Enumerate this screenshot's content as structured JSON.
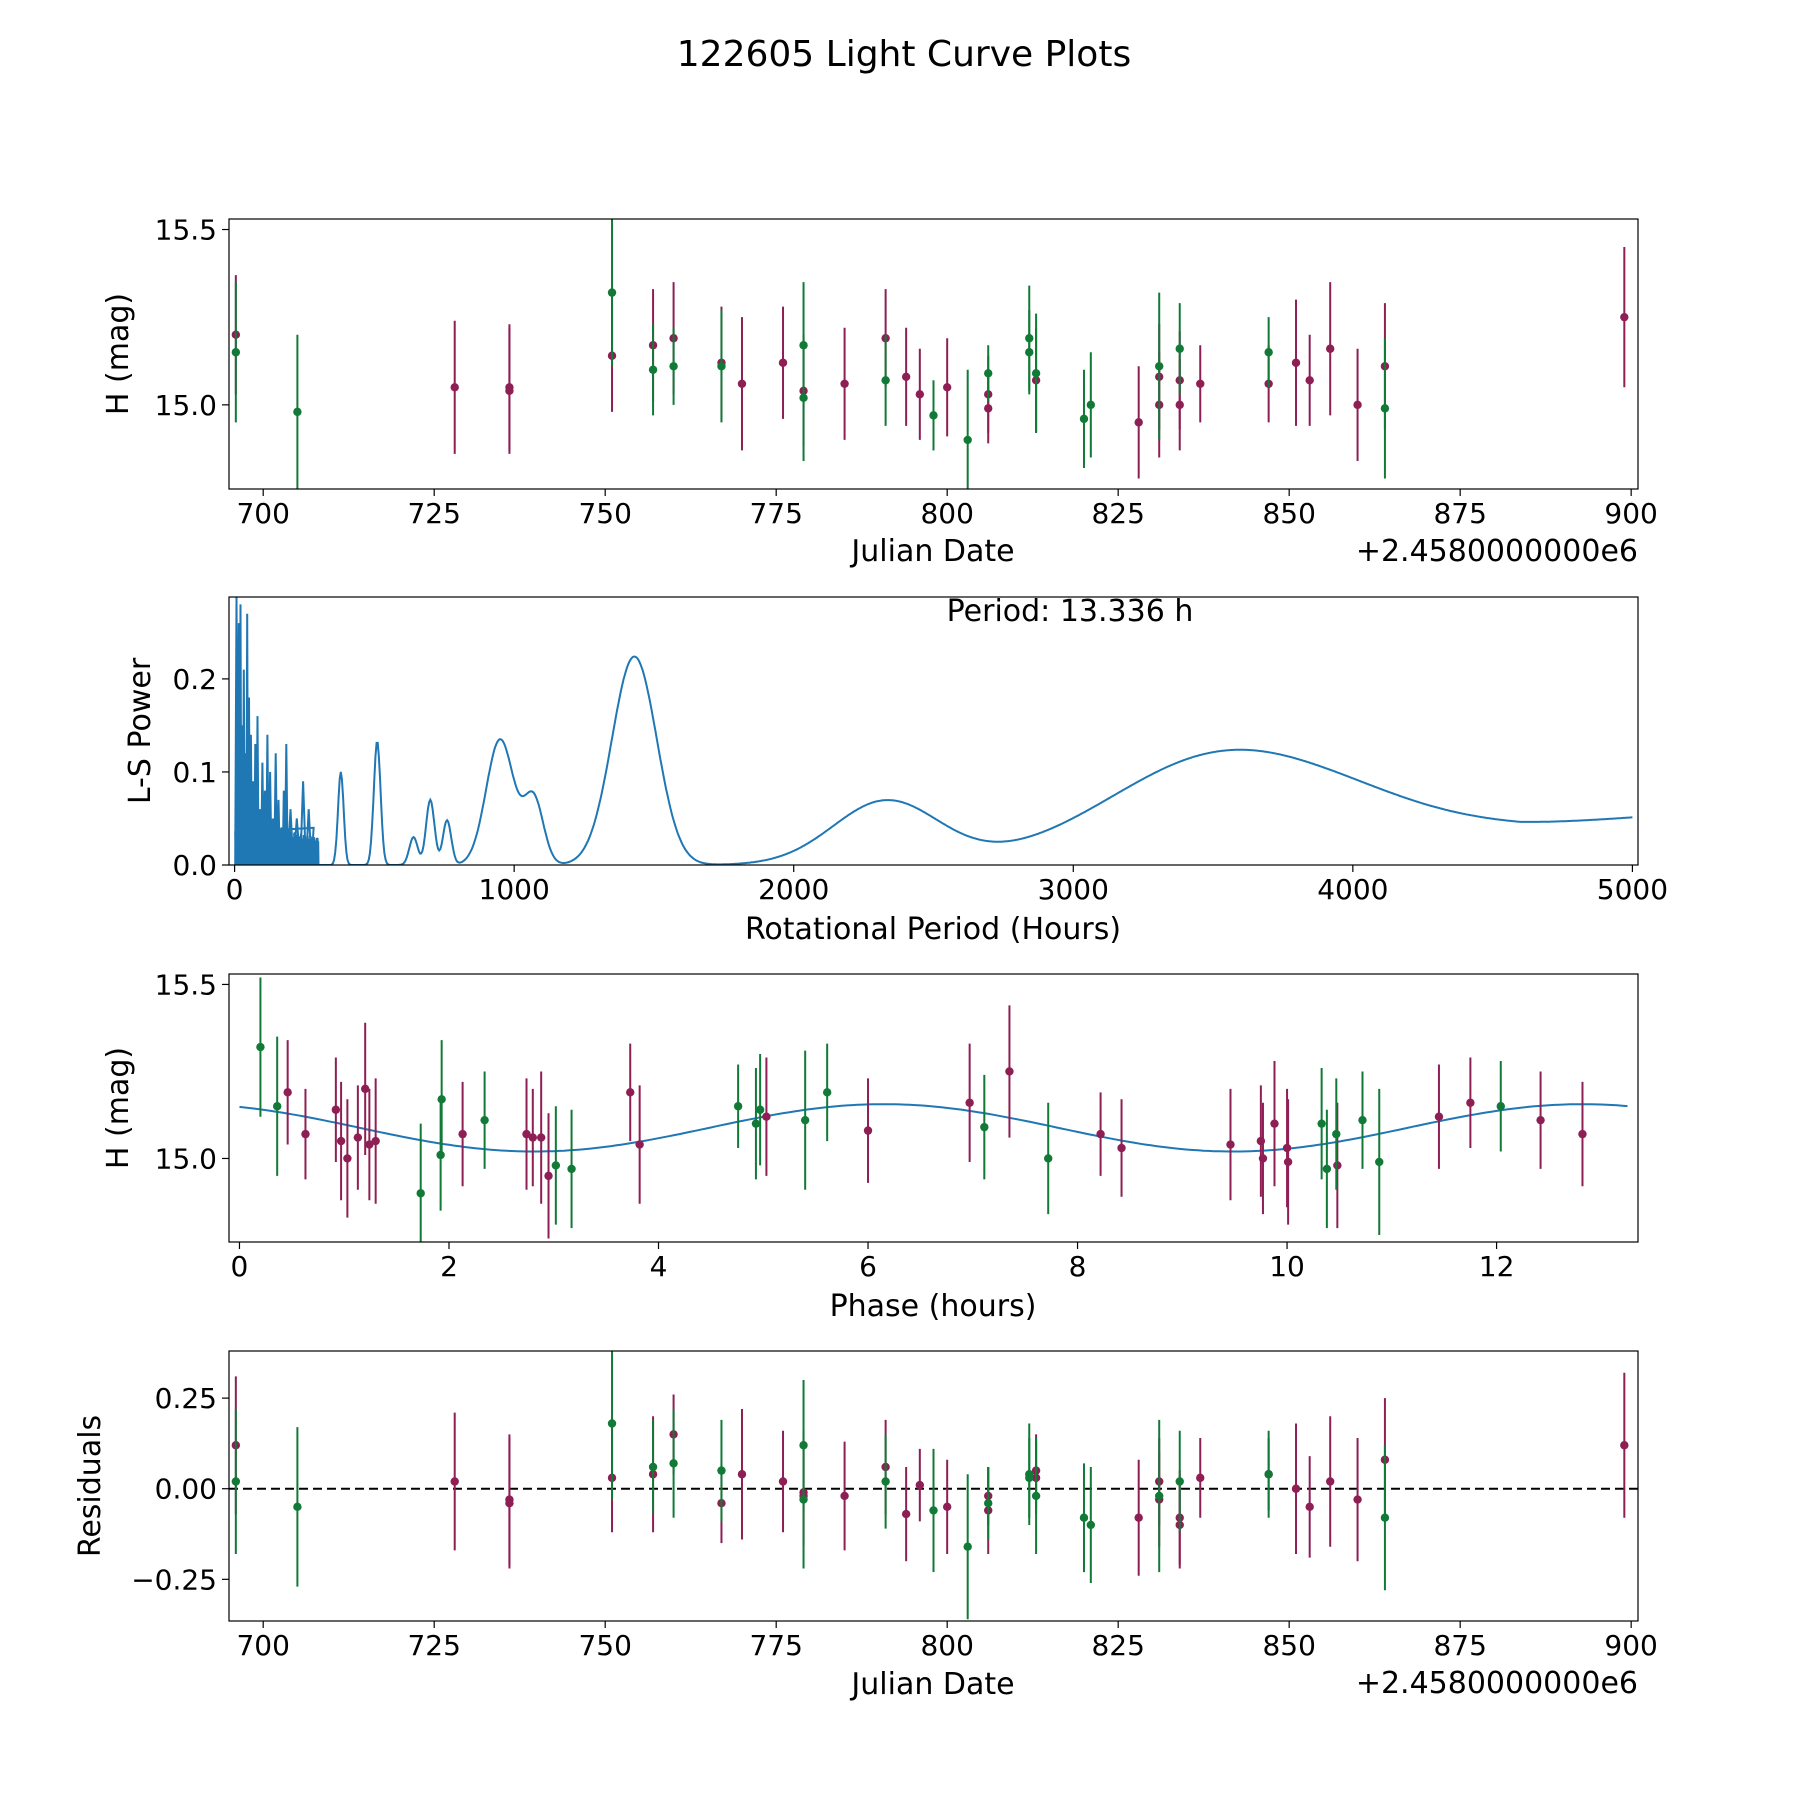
{
  "figure_title": "122605 Light Curve Plots",
  "colors": {
    "magenta": "#8e1f55",
    "green": "#117a37",
    "line": "#1f77b4"
  },
  "chart_data": [
    {
      "id": "lc",
      "type": "scatter",
      "xlabel": "Julian Date",
      "ylabel": "H (mag)",
      "offset_label": "+2.4580000000e6",
      "xlim": [
        695,
        901
      ],
      "ylim": [
        14.76,
        15.53
      ],
      "xticks": [
        700,
        725,
        750,
        775,
        800,
        825,
        850,
        875,
        900
      ],
      "yticks": [
        15.0,
        15.5
      ],
      "ytick_labels": [
        "15.0",
        "15.5"
      ],
      "series": [
        {
          "name": "magenta",
          "color_key": "magenta",
          "points": [
            [
              696.0,
              15.2,
              0.17
            ],
            [
              728.0,
              15.05,
              0.19
            ],
            [
              736.0,
              15.04,
              0.18
            ],
            [
              736.0,
              15.05,
              0.18
            ],
            [
              751.0,
              15.14,
              0.16
            ],
            [
              757.0,
              15.17,
              0.16
            ],
            [
              760.0,
              15.19,
              0.16
            ],
            [
              767.0,
              15.12,
              0.16
            ],
            [
              770.0,
              15.06,
              0.19
            ],
            [
              776.0,
              15.12,
              0.16
            ],
            [
              779.0,
              15.04,
              0.16
            ],
            [
              785.0,
              15.06,
              0.16
            ],
            [
              791.0,
              15.19,
              0.14
            ],
            [
              794.0,
              15.08,
              0.14
            ],
            [
              796.0,
              15.03,
              0.13
            ],
            [
              800.0,
              15.05,
              0.14
            ],
            [
              806.0,
              15.03,
              0.11
            ],
            [
              806.0,
              14.99,
              0.1
            ],
            [
              813.0,
              15.07,
              0.15
            ],
            [
              828.0,
              14.95,
              0.16
            ],
            [
              831.0,
              15.08,
              0.15
            ],
            [
              831.0,
              15.0,
              0.15
            ],
            [
              834.0,
              15.07,
              0.14
            ],
            [
              834.0,
              15.0,
              0.13
            ],
            [
              837.0,
              15.06,
              0.11
            ],
            [
              847.0,
              15.06,
              0.11
            ],
            [
              851.0,
              15.12,
              0.18
            ],
            [
              853.0,
              15.07,
              0.13
            ],
            [
              856.0,
              15.16,
              0.19
            ],
            [
              860.0,
              15.0,
              0.16
            ],
            [
              864.0,
              15.11,
              0.18
            ],
            [
              899.0,
              15.25,
              0.2
            ]
          ]
        },
        {
          "name": "green",
          "color_key": "green",
          "points": [
            [
              696.0,
              15.15,
              0.2
            ],
            [
              705.0,
              14.98,
              0.22
            ],
            [
              751.0,
              15.32,
              0.21
            ],
            [
              757.0,
              15.1,
              0.13
            ],
            [
              760.0,
              15.11,
              0.11
            ],
            [
              767.0,
              15.11,
              0.16
            ],
            [
              779.0,
              15.17,
              0.18
            ],
            [
              779.0,
              15.02,
              0.18
            ],
            [
              791.0,
              15.07,
              0.13
            ],
            [
              798.0,
              14.97,
              0.1
            ],
            [
              803.0,
              14.9,
              0.2
            ],
            [
              806.0,
              15.09,
              0.08
            ],
            [
              812.0,
              15.19,
              0.15
            ],
            [
              812.0,
              15.15,
              0.12
            ],
            [
              813.0,
              15.09,
              0.17
            ],
            [
              820.0,
              14.96,
              0.14
            ],
            [
              821.0,
              15.0,
              0.15
            ],
            [
              831.0,
              15.11,
              0.21
            ],
            [
              834.0,
              15.16,
              0.13
            ],
            [
              847.0,
              15.15,
              0.1
            ],
            [
              864.0,
              14.99,
              0.2
            ]
          ]
        }
      ]
    },
    {
      "id": "ls",
      "type": "line",
      "xlabel": "Rotational Period (Hours)",
      "ylabel": "L-S Power",
      "annotation": "Period: 13.336 h",
      "xlim": [
        -20,
        5020
      ],
      "ylim": [
        0.0,
        0.288
      ],
      "xticks": [
        0,
        1000,
        2000,
        3000,
        4000,
        5000
      ],
      "yticks": [
        0.0,
        0.1,
        0.2
      ],
      "ytick_labels": [
        "0.0",
        "0.1",
        "0.2"
      ],
      "smooth_peaks": [
        [
          380,
          0.1,
          10
        ],
        [
          510,
          0.133,
          12
        ],
        [
          640,
          0.03,
          15
        ],
        [
          700,
          0.07,
          15
        ],
        [
          760,
          0.048,
          15
        ],
        [
          950,
          0.135,
          50
        ],
        [
          1070,
          0.07,
          35
        ],
        [
          1430,
          0.224,
          80
        ],
        [
          2330,
          0.068,
          190
        ],
        [
          3550,
          0.118,
          420
        ]
      ],
      "spikes": [
        [
          12,
          0.288
        ],
        [
          18,
          0.26
        ],
        [
          24,
          0.28
        ],
        [
          30,
          0.15
        ],
        [
          36,
          0.21
        ],
        [
          42,
          0.12
        ],
        [
          48,
          0.27
        ],
        [
          55,
          0.18
        ],
        [
          62,
          0.14
        ],
        [
          70,
          0.09
        ],
        [
          78,
          0.13
        ],
        [
          86,
          0.16
        ],
        [
          95,
          0.06
        ],
        [
          104,
          0.11
        ],
        [
          113,
          0.08
        ],
        [
          122,
          0.14
        ],
        [
          132,
          0.1
        ],
        [
          142,
          0.05
        ],
        [
          152,
          0.12
        ],
        [
          162,
          0.07
        ],
        [
          172,
          0.04
        ],
        [
          180,
          0.08
        ],
        [
          190,
          0.13
        ],
        [
          210,
          0.06
        ],
        [
          235,
          0.05
        ],
        [
          255,
          0.09
        ],
        [
          275,
          0.06
        ],
        [
          290,
          0.04
        ]
      ]
    },
    {
      "id": "phase",
      "type": "scatter",
      "xlabel": "Phase (hours)",
      "ylabel": "H (mag)",
      "xlim": [
        -0.1,
        13.35
      ],
      "ylim": [
        14.76,
        15.53
      ],
      "xticks": [
        0,
        2,
        4,
        6,
        8,
        10,
        12
      ],
      "yticks": [
        15.0,
        15.5
      ],
      "ytick_labels": [
        "15.0",
        "15.5"
      ],
      "model": {
        "mean": 15.088,
        "amplitude": 0.068,
        "period_hours": 6.668,
        "peak_hours": 6.15,
        "x_range": [
          0.0,
          13.25
        ]
      },
      "series": [
        {
          "name": "magenta",
          "color_key": "magenta",
          "points": [
            [
              0.46,
              15.19,
              0.15
            ],
            [
              0.63,
              15.07,
              0.13
            ],
            [
              0.92,
              15.14,
              0.15
            ],
            [
              0.97,
              15.05,
              0.17
            ],
            [
              1.03,
              15.0,
              0.17
            ],
            [
              1.13,
              15.06,
              0.15
            ],
            [
              1.2,
              15.2,
              0.19
            ],
            [
              1.24,
              15.04,
              0.16
            ],
            [
              1.3,
              15.05,
              0.18
            ],
            [
              2.13,
              15.07,
              0.15
            ],
            [
              2.74,
              15.07,
              0.16
            ],
            [
              2.8,
              15.06,
              0.14
            ],
            [
              2.88,
              15.06,
              0.19
            ],
            [
              2.95,
              14.95,
              0.18
            ],
            [
              3.73,
              15.19,
              0.14
            ],
            [
              3.82,
              15.04,
              0.17
            ],
            [
              5.03,
              15.12,
              0.17
            ],
            [
              6.0,
              15.08,
              0.15
            ],
            [
              6.97,
              15.16,
              0.17
            ],
            [
              7.35,
              15.25,
              0.19
            ],
            [
              8.22,
              15.07,
              0.12
            ],
            [
              8.42,
              15.03,
              0.14
            ],
            [
              9.46,
              15.04,
              0.16
            ],
            [
              9.75,
              15.05,
              0.16
            ],
            [
              9.77,
              15.0,
              0.16
            ],
            [
              9.88,
              15.1,
              0.18
            ],
            [
              10.0,
              15.03,
              0.17
            ],
            [
              10.01,
              14.99,
              0.18
            ],
            [
              10.48,
              14.98,
              0.18
            ],
            [
              11.45,
              15.12,
              0.15
            ],
            [
              11.75,
              15.16,
              0.13
            ],
            [
              12.42,
              15.11,
              0.14
            ],
            [
              12.82,
              15.07,
              0.15
            ]
          ]
        },
        {
          "name": "green",
          "color_key": "green",
          "points": [
            [
              0.2,
              15.32,
              0.2
            ],
            [
              0.36,
              15.15,
              0.2
            ],
            [
              1.73,
              14.9,
              0.2
            ],
            [
              1.92,
              15.01,
              0.16
            ],
            [
              1.93,
              15.17,
              0.17
            ],
            [
              2.34,
              15.11,
              0.14
            ],
            [
              3.02,
              14.98,
              0.17
            ],
            [
              3.17,
              14.97,
              0.17
            ],
            [
              4.76,
              15.15,
              0.12
            ],
            [
              4.93,
              15.1,
              0.16
            ],
            [
              4.97,
              15.14,
              0.16
            ],
            [
              5.4,
              15.11,
              0.2
            ],
            [
              5.61,
              15.19,
              0.14
            ],
            [
              7.11,
              15.09,
              0.15
            ],
            [
              7.72,
              15.0,
              0.16
            ],
            [
              10.33,
              15.1,
              0.16
            ],
            [
              10.38,
              14.97,
              0.17
            ],
            [
              10.47,
              15.07,
              0.16
            ],
            [
              10.72,
              15.11,
              0.14
            ],
            [
              10.88,
              14.99,
              0.21
            ],
            [
              12.04,
              15.15,
              0.13
            ]
          ]
        }
      ]
    },
    {
      "id": "resid",
      "type": "scatter",
      "xlabel": "Julian Date",
      "ylabel": "Residuals",
      "offset_label": "+2.4580000000e6",
      "xlim": [
        695,
        901
      ],
      "ylim": [
        -0.365,
        0.38
      ],
      "xticks": [
        700,
        725,
        750,
        775,
        800,
        825,
        850,
        875,
        900
      ],
      "yticks": [
        -0.25,
        0.0,
        0.25
      ],
      "ytick_labels": [
        "−0.25",
        "0.00",
        "0.25"
      ],
      "zero_line": true,
      "series": [
        {
          "name": "magenta",
          "color_key": "magenta",
          "points": [
            [
              696.0,
              0.12,
              0.19
            ],
            [
              728.0,
              0.02,
              0.19
            ],
            [
              736.0,
              -0.03,
              0.18
            ],
            [
              736.0,
              -0.04,
              0.18
            ],
            [
              751.0,
              0.03,
              0.15
            ],
            [
              757.0,
              0.04,
              0.16
            ],
            [
              760.0,
              0.15,
              0.11
            ],
            [
              767.0,
              -0.04,
              0.11
            ],
            [
              770.0,
              0.04,
              0.18
            ],
            [
              776.0,
              0.02,
              0.14
            ],
            [
              779.0,
              -0.01,
              0.14
            ],
            [
              779.0,
              -0.02,
              0.14
            ],
            [
              785.0,
              -0.02,
              0.15
            ],
            [
              791.0,
              0.06,
              0.13
            ],
            [
              794.0,
              -0.07,
              0.13
            ],
            [
              796.0,
              0.01,
              0.1
            ],
            [
              800.0,
              -0.05,
              0.13
            ],
            [
              806.0,
              -0.06,
              0.12
            ],
            [
              806.0,
              -0.02,
              0.08
            ],
            [
              813.0,
              0.05,
              0.1
            ],
            [
              813.0,
              0.03,
              0.1
            ],
            [
              828.0,
              -0.08,
              0.16
            ],
            [
              831.0,
              0.02,
              0.12
            ],
            [
              831.0,
              -0.03,
              0.13
            ],
            [
              834.0,
              -0.08,
              0.13
            ],
            [
              834.0,
              -0.1,
              0.12
            ],
            [
              837.0,
              0.03,
              0.11
            ],
            [
              847.0,
              0.04,
              0.1
            ],
            [
              851.0,
              0.0,
              0.18
            ],
            [
              853.0,
              -0.05,
              0.14
            ],
            [
              856.0,
              0.02,
              0.18
            ],
            [
              860.0,
              -0.03,
              0.17
            ],
            [
              864.0,
              0.08,
              0.17
            ],
            [
              899.0,
              0.12,
              0.2
            ]
          ]
        },
        {
          "name": "green",
          "color_key": "green",
          "points": [
            [
              696.0,
              0.02,
              0.2
            ],
            [
              705.0,
              -0.05,
              0.22
            ],
            [
              751.0,
              0.18,
              0.21
            ],
            [
              757.0,
              0.06,
              0.13
            ],
            [
              760.0,
              0.07,
              0.15
            ],
            [
              767.0,
              0.05,
              0.14
            ],
            [
              779.0,
              0.12,
              0.18
            ],
            [
              779.0,
              -0.03,
              0.19
            ],
            [
              791.0,
              0.02,
              0.13
            ],
            [
              798.0,
              -0.06,
              0.17
            ],
            [
              803.0,
              -0.16,
              0.2
            ],
            [
              806.0,
              -0.04,
              0.1
            ],
            [
              812.0,
              0.04,
              0.14
            ],
            [
              812.0,
              0.03,
              0.11
            ],
            [
              813.0,
              -0.02,
              0.16
            ],
            [
              820.0,
              -0.08,
              0.15
            ],
            [
              821.0,
              -0.1,
              0.16
            ],
            [
              831.0,
              -0.02,
              0.21
            ],
            [
              834.0,
              0.02,
              0.14
            ],
            [
              847.0,
              0.04,
              0.12
            ],
            [
              864.0,
              -0.08,
              0.2
            ]
          ]
        }
      ]
    }
  ]
}
